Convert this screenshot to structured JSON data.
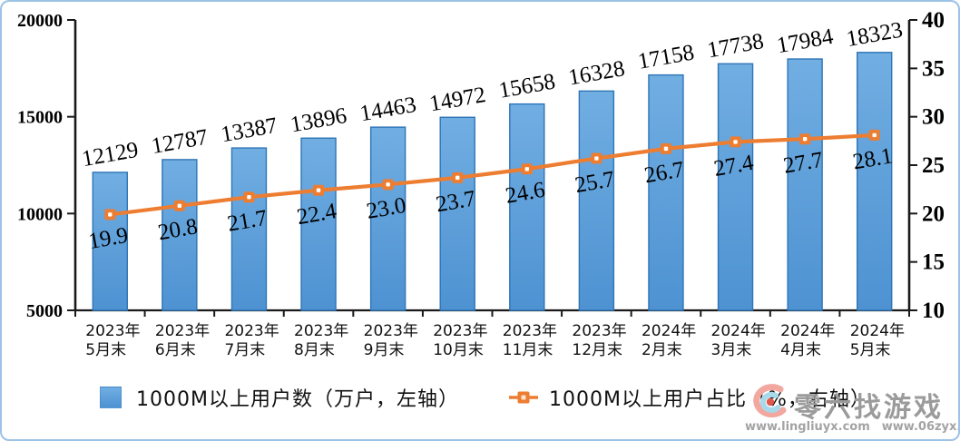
{
  "chart_data": {
    "type": "bar+line",
    "categories": [
      "2023年5月末",
      "2023年6月末",
      "2023年7月末",
      "2023年8月末",
      "2023年9月末",
      "2023年10月末",
      "2023年11月末",
      "2023年12月末",
      "2024年2月末",
      "2024年3月末",
      "2024年4月末",
      "2024年5月末"
    ],
    "series": [
      {
        "name": "1000M以上用户数（万户，左轴）",
        "type": "bar",
        "axis": "left",
        "values": [
          12129,
          12787,
          13387,
          13896,
          14463,
          14972,
          15658,
          16328,
          17158,
          17738,
          17984,
          18323
        ],
        "color": "#5B9BD5",
        "border_color": "#2E75B6"
      },
      {
        "name": "1000M以上用户占比（%，右轴）",
        "type": "line",
        "axis": "right",
        "values": [
          19.9,
          20.8,
          21.7,
          22.4,
          23.0,
          23.7,
          24.6,
          25.7,
          26.7,
          27.4,
          27.7,
          28.1
        ],
        "color": "#ED7D31",
        "label_decimals": 1
      }
    ],
    "left_axis": {
      "min": 5000,
      "max": 20000,
      "ticks": [
        5000,
        10000,
        15000,
        20000
      ]
    },
    "right_axis": {
      "min": 10,
      "max": 40,
      "ticks": [
        10,
        15,
        20,
        25,
        30,
        35,
        40
      ]
    },
    "title": "",
    "xlabel": "",
    "ylabel": "",
    "grid": false,
    "legend_position": "bottom",
    "data_label_rotation": -10
  },
  "legend": {
    "bar_label": "1000M以上用户数（万户，左轴）",
    "line_label": "1000M以上用户占比（%，右轴）"
  },
  "watermark": {
    "title": "零六找游戏",
    "url1": "www.lingliuyx.com",
    "url2": "www.06zyx.com"
  },
  "colors": {
    "bar_fill_top": "#71AEE2",
    "bar_fill_bottom": "#4E92D2",
    "bar_border": "#2E75B6",
    "line": "#ED7D31",
    "axis": "#1a1a1a",
    "frame_border": "#9DC3E6",
    "watermark_text": "#9B9B9B"
  }
}
